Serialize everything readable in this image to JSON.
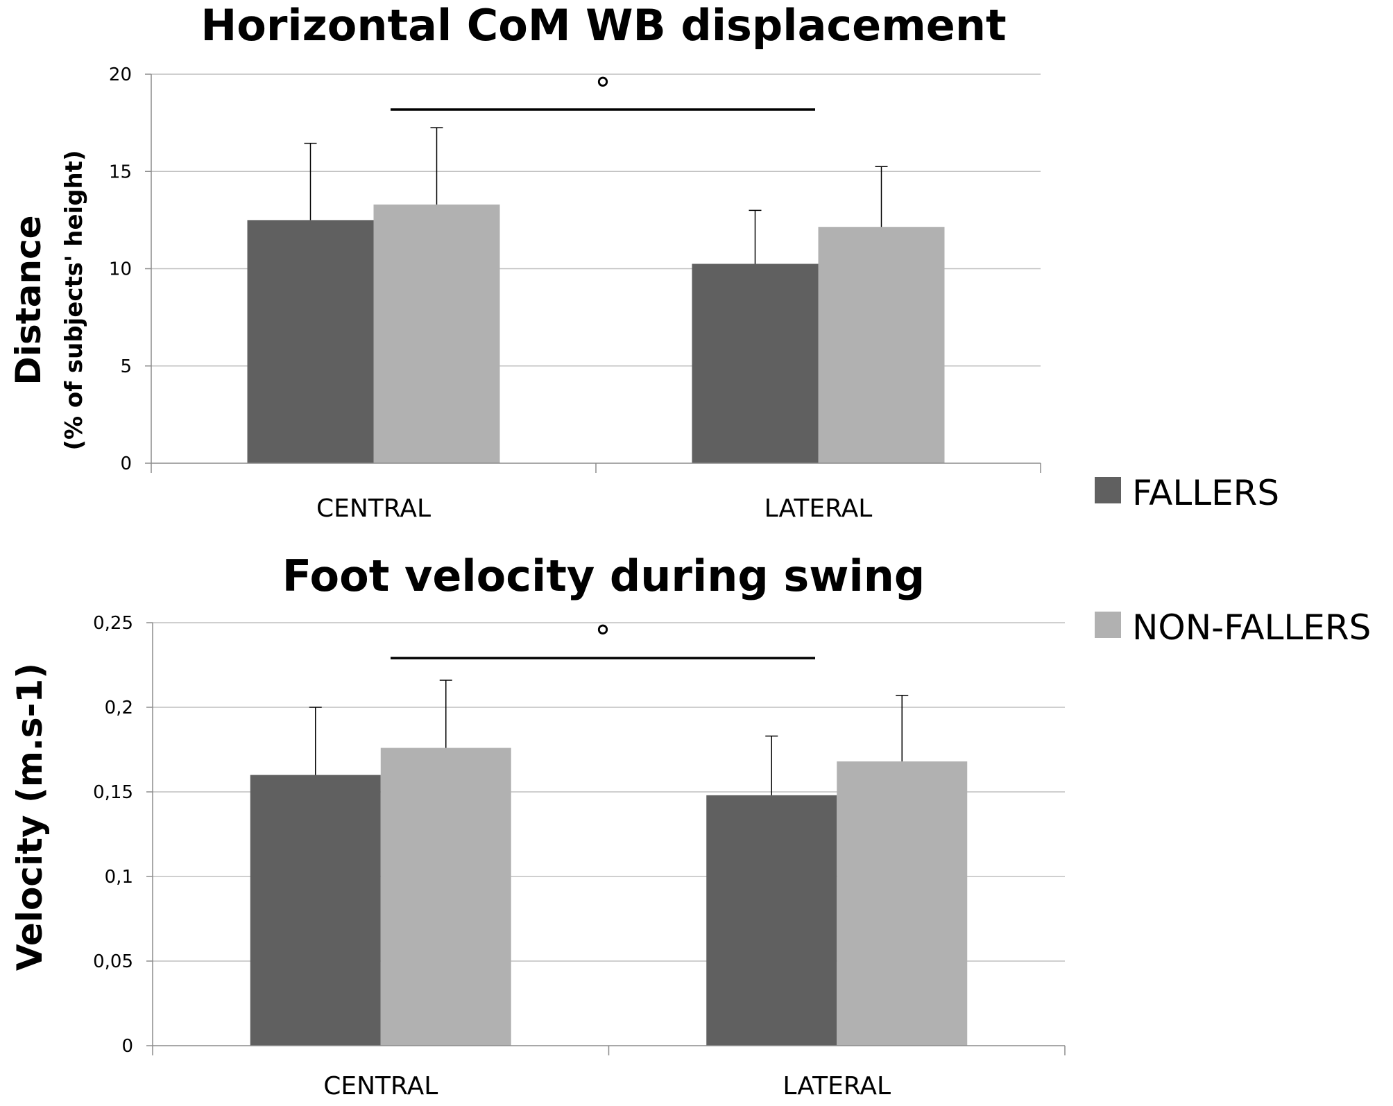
{
  "legend": [
    {
      "label": "FALLERS",
      "color": "#606060"
    },
    {
      "label": "NON-FALLERS",
      "color": "#b1b1b1"
    }
  ],
  "chart_data": [
    {
      "type": "bar",
      "title": "Horizontal CoM WB displacement",
      "ylabel": "Distance",
      "ylabel_sub": "(% of subjects' height)",
      "xlabel": "",
      "categories": [
        "CENTRAL",
        "LATERAL"
      ],
      "ylim": [
        0,
        20
      ],
      "yticks": [
        0,
        5,
        10,
        15,
        20
      ],
      "ytick_labels": [
        "0",
        "5",
        "10",
        "15",
        "20"
      ],
      "grid": true,
      "series": [
        {
          "name": "FALLERS",
          "values": [
            12.5,
            10.25
          ],
          "errors": [
            3.95,
            2.75
          ]
        },
        {
          "name": "NON-FALLERS",
          "values": [
            13.3,
            12.15
          ],
          "errors": [
            3.95,
            3.1
          ]
        }
      ],
      "significance": {
        "marker": "°",
        "between": [
          "CENTRAL",
          "LATERAL"
        ]
      }
    },
    {
      "type": "bar",
      "title": "Foot velocity during swing",
      "ylabel": "Velocity (m.s-1)",
      "xlabel": "",
      "categories": [
        "CENTRAL",
        "LATERAL"
      ],
      "ylim": [
        0,
        0.25
      ],
      "yticks": [
        0,
        0.05,
        0.1,
        0.15,
        0.2,
        0.25
      ],
      "ytick_labels": [
        "0",
        "0,05",
        "0,1",
        "0,15",
        "0,2",
        "0,25"
      ],
      "grid": true,
      "series": [
        {
          "name": "FALLERS",
          "values": [
            0.16,
            0.148
          ],
          "errors": [
            0.04,
            0.035
          ]
        },
        {
          "name": "NON-FALLERS",
          "values": [
            0.176,
            0.168
          ],
          "errors": [
            0.04,
            0.039
          ]
        }
      ],
      "significance": {
        "marker": "°",
        "between": [
          "CENTRAL",
          "LATERAL"
        ]
      }
    }
  ]
}
